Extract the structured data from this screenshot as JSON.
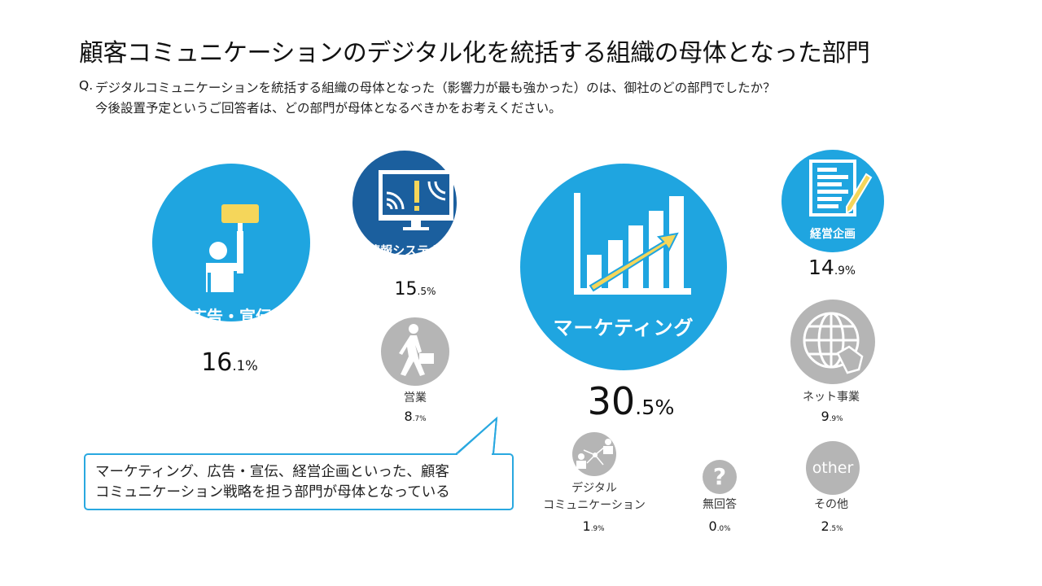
{
  "title": "顧客コミュニケーションのデジタル化を統括する組織の母体となった部門",
  "question": {
    "prefix": "Q.",
    "line1": "デジタルコミュニケーションを統括する組織の母体となった（影響力が最も強かった）のは、御社のどの部門でしたか？",
    "line2": "今後設置予定というご回答者は、どの部門が母体となるべきかをお考えください。"
  },
  "callout": {
    "line1": "マーケティング、広告・宣伝、経営企画といった、顧客",
    "line2": "コミュニケーション戦略を担う部門が母体となっている"
  },
  "colors": {
    "accent": "#1fa5e0",
    "dark": "#1b5f9e",
    "gray": "#b5b5b5",
    "yellow": "#f5d65a"
  },
  "chart_data": {
    "type": "bubble",
    "unit": "%",
    "categories": [
      "広告・宣伝",
      "情報システム",
      "営業",
      "マーケティング",
      "経営企画",
      "ネット事業",
      "デジタル コミュニケーション",
      "無回答",
      "その他"
    ],
    "values": [
      16.1,
      15.5,
      8.7,
      30.5,
      14.9,
      9.9,
      1.9,
      0.0,
      2.5
    ],
    "items": [
      {
        "label": "広告・宣伝",
        "value": "16.1",
        "icon": "person-holding-sign-icon",
        "color": "#1fa5e0"
      },
      {
        "label": "情報システム",
        "value": "15.5",
        "icon": "monitor-alert-icon",
        "color": "#1b5f9e"
      },
      {
        "label": "営業",
        "value": "8.7",
        "icon": "walking-businessman-icon",
        "color": "#b5b5b5"
      },
      {
        "label": "マーケティング",
        "value": "30.5",
        "icon": "bar-chart-arrow-icon",
        "color": "#1fa5e0"
      },
      {
        "label": "経営企画",
        "value": "14.9",
        "icon": "document-pen-icon",
        "color": "#1fa5e0"
      },
      {
        "label": "ネット事業",
        "value": "9.9",
        "icon": "globe-cursor-icon",
        "color": "#b5b5b5"
      },
      {
        "label": "デジタル",
        "label2": "コミュニケーション",
        "value": "1.9",
        "icon": "network-people-icon",
        "color": "#b5b5b5"
      },
      {
        "label": "無回答",
        "value": "0.0",
        "icon": "question-icon",
        "color": "#b5b5b5"
      },
      {
        "label": "その他",
        "value": "2.5",
        "icon": "other-icon",
        "icon_text": "other",
        "color": "#b5b5b5"
      }
    ]
  }
}
